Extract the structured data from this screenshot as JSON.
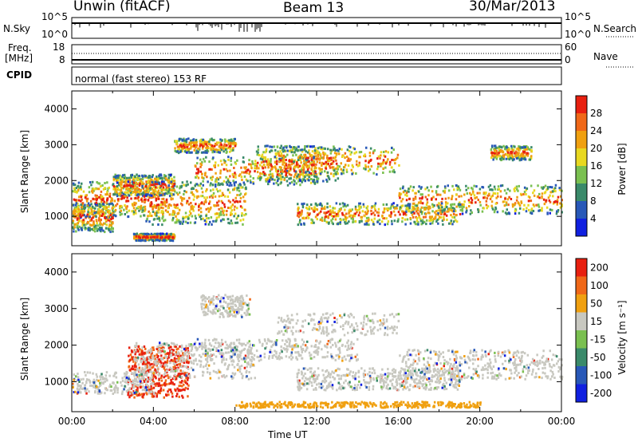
{
  "header": {
    "station": "Unwin (fitACF)",
    "beam": "Beam 13",
    "date": "30/Mar/2013"
  },
  "side_labels": {
    "nsky": "N.Sky",
    "freq_line1": "Freq.",
    "freq_line2": "[MHz]",
    "cpid": "CPID",
    "nsearch": "N.Search",
    "nave": "Nave"
  },
  "mode_text": "normal (fast stereo) 153 RF",
  "colors": {
    "scale": [
      "#1020e0",
      "#2858b8",
      "#3a8a6a",
      "#7ac050",
      "#e8d820",
      "#f0a010",
      "#f06818",
      "#e82010"
    ],
    "velocity": [
      "#1020e0",
      "#2858b8",
      "#3a8a6a",
      "#7ac050",
      "#c8c8c0",
      "#f0a010",
      "#f06818",
      "#e82010"
    ],
    "grey": "#c8c8c0"
  },
  "chart_data": [
    {
      "type": "line",
      "name": "noise_panel",
      "yticks_left": [
        "10^5",
        "10^0"
      ],
      "yticks_right": [
        "10^5",
        "10^0"
      ]
    },
    {
      "type": "line",
      "name": "freq_panel",
      "yticks_left": [
        "18",
        "8"
      ],
      "yticks_right": [
        "60",
        "0"
      ]
    },
    {
      "type": "heatmap",
      "name": "power",
      "ylabel": "Slant Range [km]",
      "ylim": [
        180,
        4500
      ],
      "yticks": [
        1000,
        2000,
        3000,
        4000
      ],
      "colorbar_label": "Power [dB]",
      "colorbar_ticks": [
        "4",
        "8",
        "12",
        "16",
        "20",
        "24",
        "28"
      ]
    },
    {
      "type": "heatmap",
      "name": "velocity",
      "ylabel": "Slant Range [km]",
      "xlabel": "Time UT",
      "ylim": [
        180,
        4500
      ],
      "yticks": [
        1000,
        2000,
        3000,
        4000
      ],
      "xlim": [
        0,
        24
      ],
      "xticks": [
        "00:00",
        "04:00",
        "08:00",
        "12:00",
        "16:00",
        "20:00",
        "00:00"
      ],
      "colorbar_label": "Velocity [m s⁻¹]",
      "colorbar_ticks": [
        "200",
        "100",
        "50",
        "15",
        "-15",
        "-50",
        "-100",
        "-200"
      ]
    }
  ]
}
